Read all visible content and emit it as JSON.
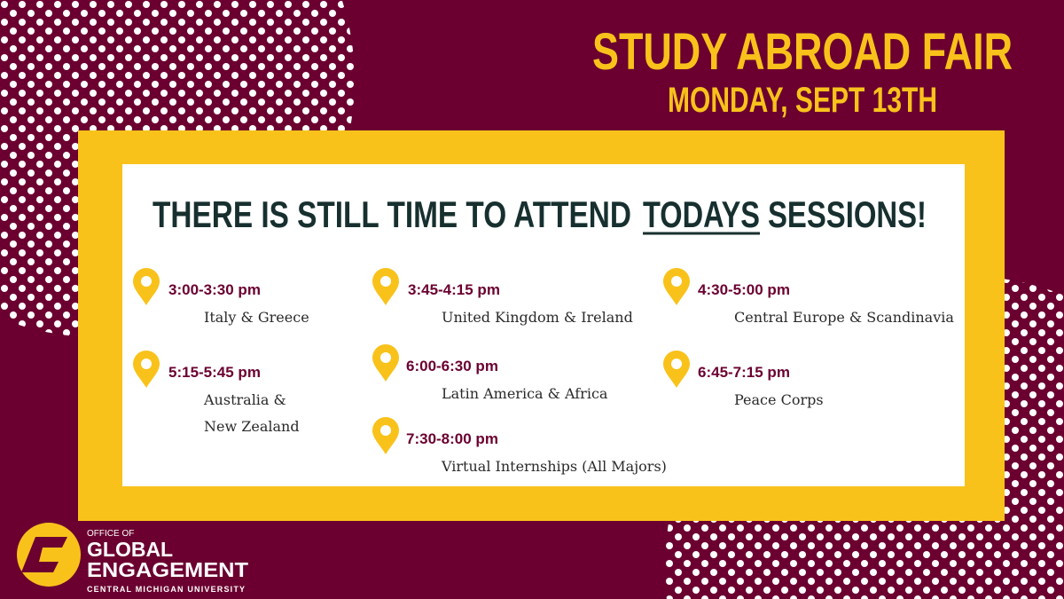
{
  "header": {
    "title": "STUDY ABROAD FAIR",
    "date": "MONDAY, SEPT 13TH"
  },
  "headline": {
    "before": "THERE IS STILL TIME TO ATTEND",
    "emphasis": "TODAYS",
    "after": "SESSIONS!"
  },
  "sessions": [
    {
      "time": "3:00-3:30 pm",
      "lines": [
        "Italy & Greece"
      ]
    },
    {
      "time": "3:45-4:15 pm",
      "lines": [
        "United Kingdom & Ireland"
      ]
    },
    {
      "time": "4:30-5:00 pm",
      "lines": [
        "Central Europe & Scandinavia"
      ]
    },
    {
      "time": "5:15-5:45 pm",
      "lines": [
        "Australia &",
        "New Zealand"
      ]
    },
    {
      "time": "6:00-6:30 pm",
      "lines": [
        "Latin America & Africa"
      ]
    },
    {
      "time": "6:45-7:15 pm",
      "lines": [
        "Peace Corps"
      ]
    },
    {
      "time": "7:30-8:00 pm",
      "lines": [
        "Virtual Internships (All Majors)"
      ]
    }
  ],
  "logo": {
    "office": "OFFICE OF",
    "line1": "GLOBAL",
    "line2": "ENGAGEMENT",
    "university": "CENTRAL MICHIGAN UNIVERSITY"
  }
}
